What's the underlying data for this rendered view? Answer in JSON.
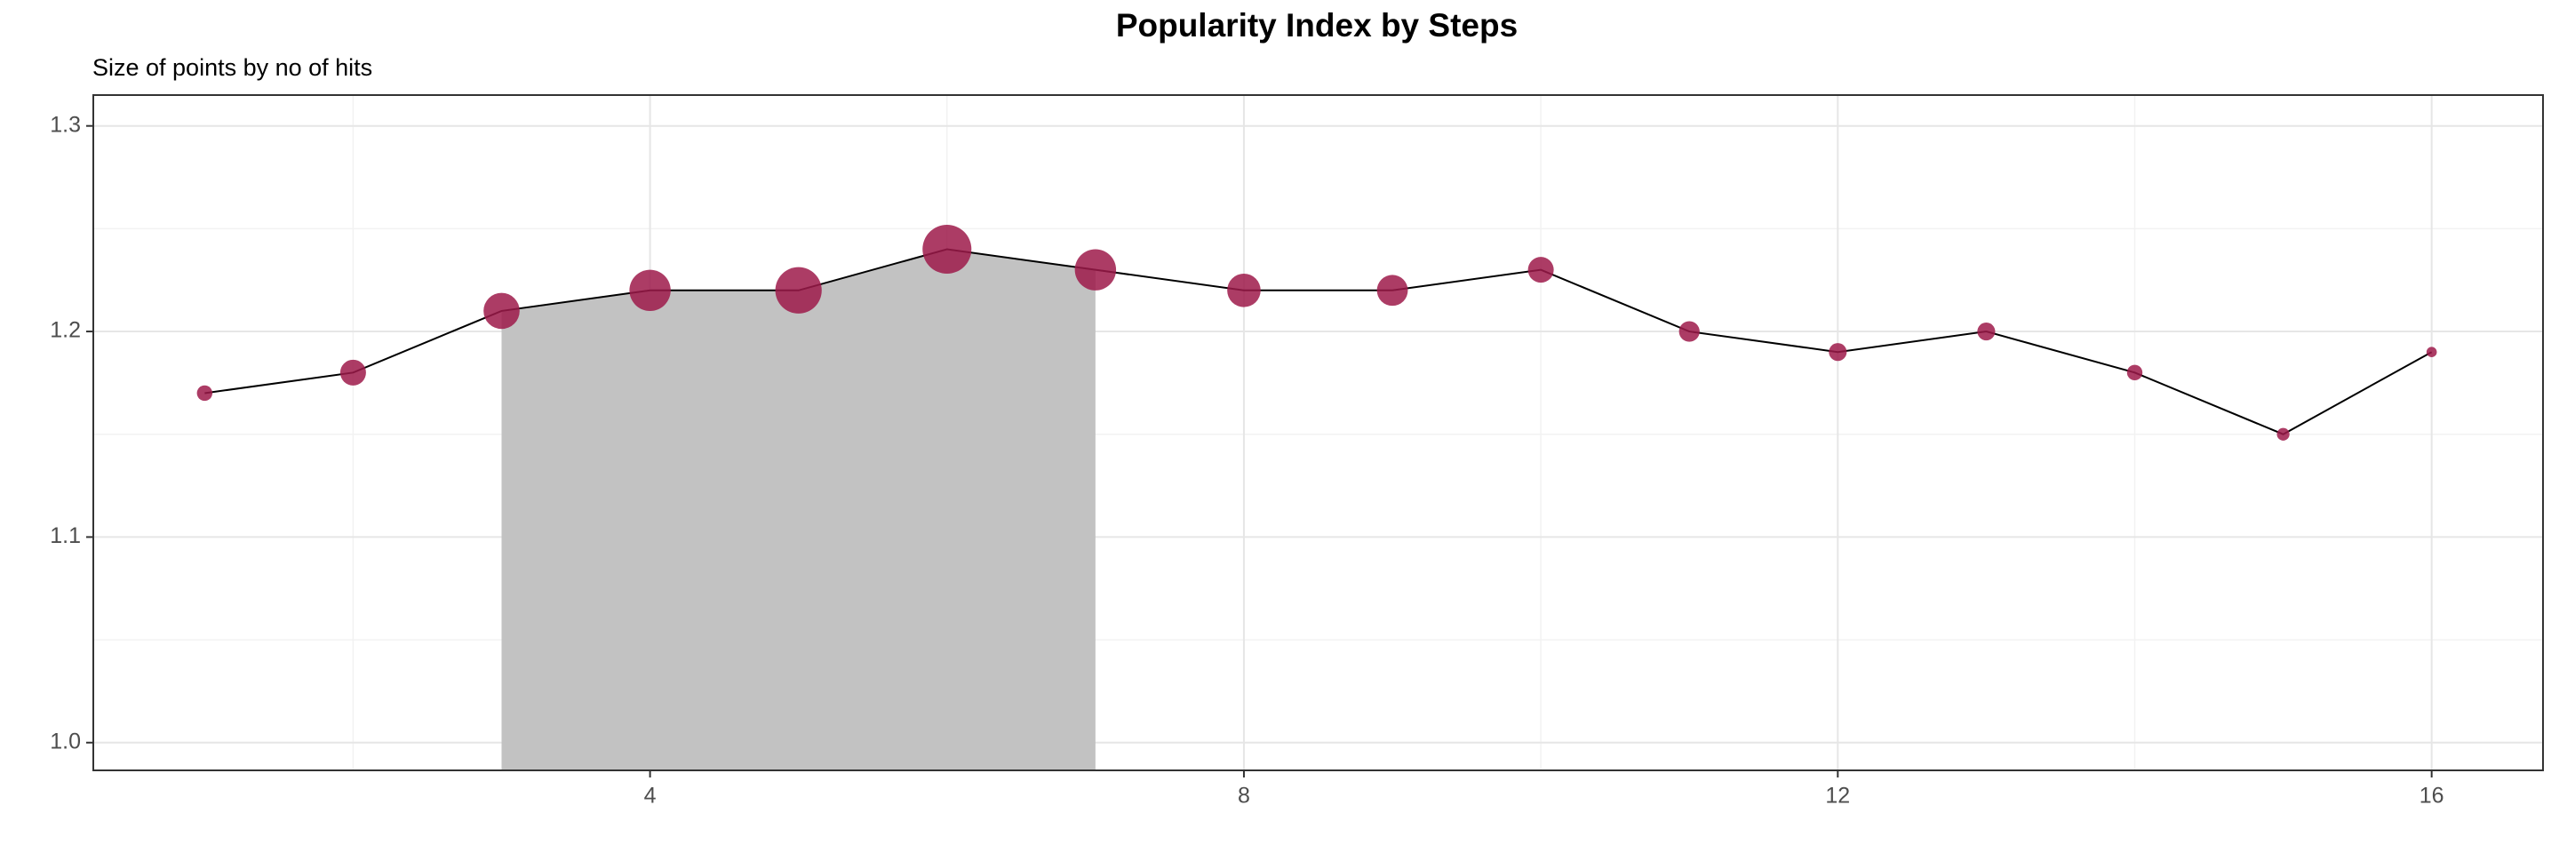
{
  "chart_data": {
    "type": "line",
    "title": "Popularity Index by Steps",
    "subtitle": "Size of points by no of hits",
    "x": [
      1,
      2,
      3,
      4,
      5,
      6,
      7,
      8,
      9,
      10,
      11,
      12,
      13,
      14,
      15,
      16
    ],
    "values": [
      1.17,
      1.18,
      1.21,
      1.22,
      1.22,
      1.24,
      1.23,
      1.22,
      1.22,
      1.23,
      1.2,
      1.19,
      1.2,
      1.18,
      1.15,
      1.19
    ],
    "sizes": [
      9,
      25,
      49,
      64,
      81,
      90,
      64,
      42,
      36,
      25,
      16,
      12,
      12,
      9,
      6,
      4
    ],
    "highlight_range": [
      3,
      7
    ],
    "color": "#9e1a4a",
    "line_color": "#000000",
    "highlight_color": "#c2c2c2",
    "xlim": [
      0.25,
      16.75
    ],
    "ylim": [
      0.9865,
      1.315
    ],
    "xticks": [
      4,
      8,
      12,
      16
    ],
    "minor_xticks": [
      2,
      6,
      10,
      14
    ],
    "yticks": [
      {
        "value": 1,
        "label": "1.0"
      },
      1.1,
      1.2,
      1.3
    ],
    "minor_yticks": [
      1.05,
      1.15,
      1.25
    ],
    "grid": true
  }
}
